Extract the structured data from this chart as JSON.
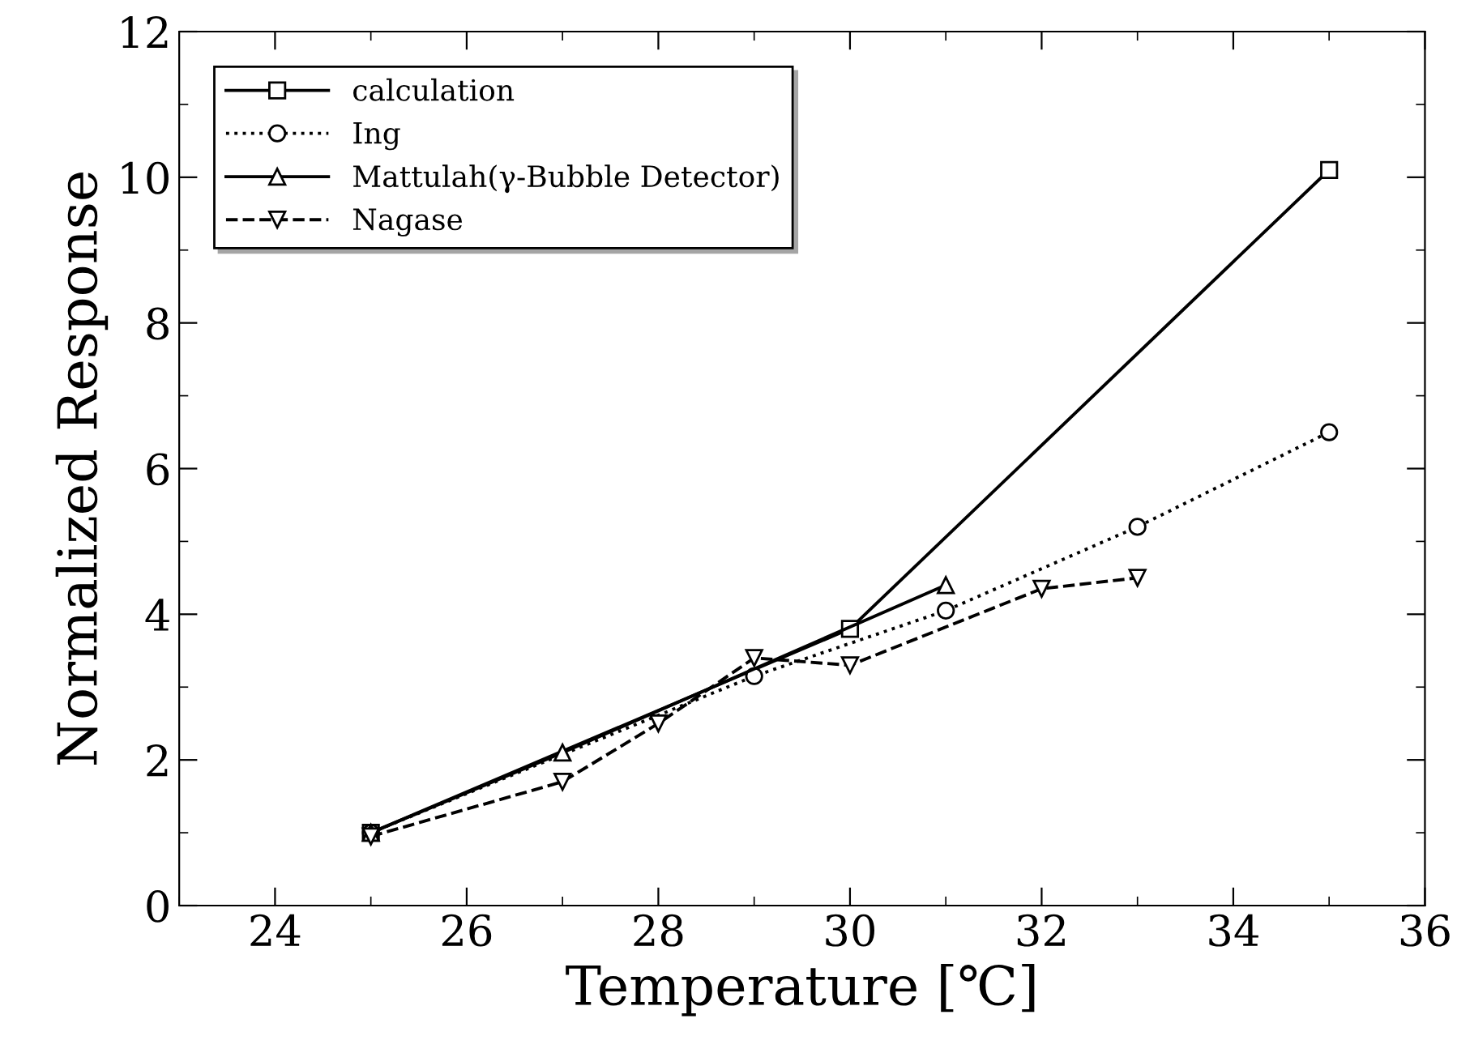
{
  "chart_data": {
    "type": "line",
    "xlabel": "Temperature [℃]",
    "ylabel": "Normalized Response",
    "xlim": [
      23,
      36
    ],
    "xticks": [
      24,
      26,
      28,
      30,
      32,
      34,
      36
    ],
    "ylim": [
      0,
      12
    ],
    "yticks": [
      0,
      2,
      4,
      6,
      8,
      10,
      12
    ],
    "grid": false,
    "legend": "top left",
    "series": [
      {
        "name": "calculation",
        "color": "#000000",
        "marker": "square",
        "line_style": "solid",
        "x": [
          25,
          30,
          35
        ],
        "values": [
          1,
          3.8,
          10.1
        ]
      },
      {
        "name": "Ing",
        "color": "#000000",
        "marker": "circle",
        "line_style": "dotted",
        "x": [
          25,
          29,
          31,
          33,
          35
        ],
        "values": [
          1,
          3.15,
          4.05,
          5.2,
          6.5
        ]
      },
      {
        "name": "Mattulah(γ-Bubble Detector)",
        "color": "#000000",
        "marker": "triangle",
        "line_style": "solid",
        "x": [
          25,
          27,
          31
        ],
        "values": [
          1,
          2.1,
          4.4
        ]
      },
      {
        "name": "Nagase",
        "color": "#000000",
        "marker": "triangle_down",
        "line_style": "dashed",
        "x": [
          25,
          27,
          28,
          29,
          30,
          32,
          33
        ],
        "values": [
          0.95,
          1.7,
          2.5,
          3.4,
          3.3,
          4.35,
          4.5
        ]
      }
    ]
  }
}
